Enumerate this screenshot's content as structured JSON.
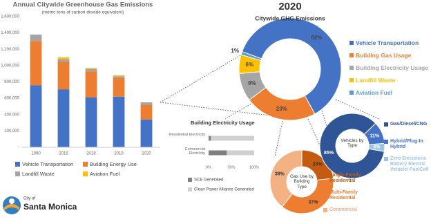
{
  "chart_data": [
    {
      "type": "bar",
      "stacked": true,
      "title": "Annual Citywide Greenhouse Gas Emissions",
      "subtitle": "(metric tons of carbon dioxide equivalent)",
      "categories": [
        "1990",
        "2015",
        "2018",
        "2019",
        "2020"
      ],
      "series": [
        {
          "name": "Vehicle Transportation",
          "color": "#4472c4",
          "values": [
            760000,
            710000,
            610000,
            620000,
            340000
          ]
        },
        {
          "name": "Building Energy Use",
          "color": "#ed7d31",
          "values": [
            540000,
            340000,
            320000,
            230000,
            180000
          ]
        },
        {
          "name": "Landfill Waste",
          "color": "#a5a5a5",
          "values": [
            80000,
            30000,
            30000,
            20000,
            30000
          ]
        },
        {
          "name": "Aviation Fuel",
          "color": "#ffc000",
          "values": [
            0,
            20000,
            10000,
            10000,
            0
          ]
        }
      ],
      "ylim": [
        0,
        1600000
      ],
      "yticks": [
        {
          "value": 0,
          "label": "-"
        },
        {
          "value": 200000,
          "label": "200,000"
        },
        {
          "value": 400000,
          "label": "400,000"
        },
        {
          "value": 600000,
          "label": "600,000"
        },
        {
          "value": 800000,
          "label": "800,000"
        },
        {
          "value": 1000000,
          "label": "1,000,000"
        },
        {
          "value": 1200000,
          "label": "1,200,000"
        },
        {
          "value": 1400000,
          "label": "1,400,000"
        },
        {
          "value": 1600000,
          "label": "1,600,000"
        }
      ],
      "legend": "bottom"
    },
    {
      "type": "donut",
      "title": "2020",
      "subtitle": "Citywide GHG Emissions",
      "categories": [
        "Vehicle Transportation",
        "Building Gas Usage",
        "Building Electricity Usage",
        "Landfill Waste",
        "Aviation Fuel"
      ],
      "values": [
        62,
        23,
        9,
        6,
        1
      ],
      "value_labels": [
        "62%",
        "23%",
        "9%",
        "6%",
        "1%"
      ],
      "colors": [
        "#4472c4",
        "#ed7d31",
        "#a5a5a5",
        "#ffc000",
        "#5b9bd5"
      ],
      "legend": "right"
    },
    {
      "type": "bar",
      "orientation": "horizontal",
      "stacked": true,
      "title": "Building Electricity Usage",
      "categories": [
        "Residential Electricity",
        "Commercial Electricity"
      ],
      "series": [
        {
          "name": "SCE Generated",
          "color": "#7f7f7f",
          "values": [
            5,
            40
          ]
        },
        {
          "name": "Clean Power Alliance Generated",
          "color": "#d0d0d0",
          "values": [
            95,
            60
          ]
        }
      ],
      "xlim": [
        0,
        100
      ],
      "xticks": [
        {
          "value": 0,
          "label": "0%"
        },
        {
          "value": 50,
          "label": "50%"
        },
        {
          "value": 100,
          "label": "100%"
        }
      ],
      "legend": "bottom"
    },
    {
      "type": "donut",
      "title": "Gas Use by Building Type",
      "categories": [
        "Single-Family Residential",
        "Multi-Family Residential",
        "Commercial"
      ],
      "values": [
        23,
        37,
        39
      ],
      "value_labels": [
        "23%",
        "37%",
        "39%"
      ],
      "colors": [
        "#c55a11",
        "#ed7d31",
        "#f4b183"
      ],
      "legend": "right"
    },
    {
      "type": "donut",
      "title": "Vehicles by Type",
      "categories": [
        "Gas/Diesel/CNG",
        "Hybrid/Plug-In Hybrid",
        "Zero Emissions Battery Electric Vehicle/ FuelCell"
      ],
      "values": [
        85,
        11,
        4
      ],
      "value_labels": [
        "85%",
        "11%",
        "4%"
      ],
      "colors": [
        "#2f5597",
        "#4472c4",
        "#9dc3e6"
      ],
      "legend": "right"
    }
  ],
  "logo": {
    "line1": "City of",
    "line2": "Santa Monica"
  }
}
